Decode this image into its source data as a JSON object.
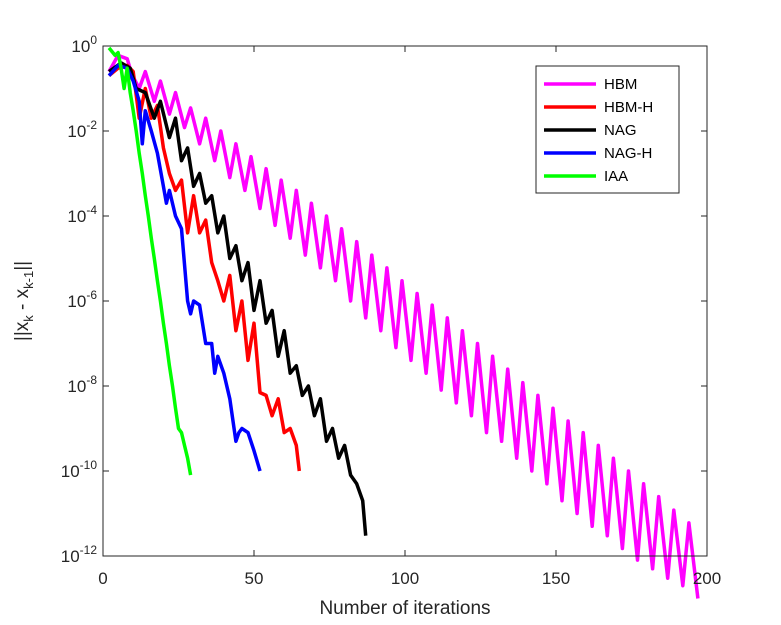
{
  "chart_data": {
    "type": "line",
    "title": "",
    "xlabel": "Number of iterations",
    "ylabel": {
      "prefix": "||x",
      "sub1": "k",
      "mid": " - x",
      "sub2": "k-1",
      "suffix": "||"
    },
    "yscale": "log",
    "xlim": [
      0,
      200
    ],
    "ylim": [
      1e-12,
      1
    ],
    "xticks": [
      0,
      50,
      100,
      150,
      200
    ],
    "xtick_labels": [
      "0",
      "50",
      "100",
      "150",
      "200"
    ],
    "yticks": [
      {
        "value": 1e-12,
        "base": "10",
        "exp": "-12"
      },
      {
        "value": 1e-10,
        "base": "10",
        "exp": "-10"
      },
      {
        "value": 1e-08,
        "base": "10",
        "exp": "-8"
      },
      {
        "value": 1e-06,
        "base": "10",
        "exp": "-6"
      },
      {
        "value": 0.0001,
        "base": "10",
        "exp": "-4"
      },
      {
        "value": 0.01,
        "base": "10",
        "exp": "-2"
      },
      {
        "value": 1,
        "base": "10",
        "exp": "0"
      }
    ],
    "grid": false,
    "legend_position": "top-right",
    "series": [
      {
        "name": "HBM",
        "color": "#ff00ff",
        "x": [
          2,
          5,
          8,
          9.5,
          12,
          14,
          17,
          19,
          22,
          24,
          27,
          29,
          32,
          34,
          37,
          39,
          42,
          44,
          47,
          49,
          52,
          54,
          57,
          59,
          62,
          64,
          67,
          69,
          72,
          74,
          77,
          79,
          82,
          84,
          87,
          89,
          92,
          94,
          97,
          99,
          102,
          104,
          107,
          109,
          112,
          114,
          117,
          119,
          122,
          124,
          127,
          129,
          132,
          134,
          137,
          139,
          142,
          144,
          147,
          149,
          152,
          154,
          157,
          159,
          162,
          164,
          167,
          169,
          172,
          174,
          177,
          179,
          182,
          184,
          187,
          189,
          192,
          194,
          197
        ],
        "y": [
          0.25,
          0.6,
          0.5,
          0.22,
          0.1,
          0.25,
          0.05,
          0.15,
          0.025,
          0.08,
          0.012,
          0.035,
          0.005,
          0.02,
          0.002,
          0.01,
          0.0008,
          0.005,
          0.0004,
          0.0025,
          0.00015,
          0.0013,
          6e-05,
          0.0007,
          3e-05,
          0.0004,
          1.2e-05,
          0.0002,
          6e-06,
          0.0001,
          3e-06,
          5e-05,
          1e-06,
          2.5e-05,
          4e-07,
          1.2e-05,
          2e-07,
          6e-06,
          8e-08,
          3e-06,
          4e-08,
          1.5e-06,
          2e-08,
          8e-07,
          8e-09,
          4e-07,
          4e-09,
          2e-07,
          2e-09,
          1e-07,
          8e-10,
          5e-08,
          5e-10,
          2.5e-08,
          2e-10,
          1.2e-08,
          1e-10,
          6e-09,
          5e-11,
          3e-09,
          2e-11,
          1.5e-09,
          1e-11,
          8e-10,
          5e-12,
          4e-10,
          3e-12,
          2e-10,
          1.5e-12,
          1e-10,
          8e-13,
          5e-11,
          5e-13,
          2.5e-11,
          3e-13,
          1.2e-11,
          2e-13,
          6e-12,
          1e-13
        ]
      },
      {
        "name": "HBM-H",
        "color": "#ff0000",
        "x": [
          2,
          5,
          8,
          10,
          12,
          14,
          16,
          18,
          20,
          22,
          24,
          26,
          28,
          30,
          32,
          34,
          36,
          38,
          40,
          42,
          44,
          46,
          48,
          50,
          52,
          54,
          56,
          58,
          60,
          62,
          64,
          65
        ],
        "y": [
          0.2,
          0.3,
          0.35,
          0.25,
          0.02,
          0.1,
          0.02,
          0.04,
          0.004,
          0.001,
          0.0004,
          0.0007,
          4e-05,
          0.0003,
          4e-05,
          8e-05,
          8e-06,
          3e-06,
          1e-06,
          4e-06,
          2e-07,
          1e-06,
          4e-08,
          3e-07,
          7e-09,
          6e-09,
          2e-09,
          5e-09,
          8e-10,
          1e-09,
          4e-10,
          1e-10
        ]
      },
      {
        "name": "NAG",
        "color": "#000000",
        "x": [
          2,
          6,
          9,
          11,
          14,
          17,
          19,
          22,
          24,
          26,
          28,
          30,
          32,
          34,
          36,
          38,
          40,
          42,
          44,
          46,
          48,
          50,
          52,
          54,
          56,
          58,
          60,
          62,
          64,
          66,
          68,
          70,
          72,
          74,
          76,
          78,
          80,
          82,
          84,
          86,
          87
        ],
        "y": [
          0.25,
          0.4,
          0.3,
          0.1,
          0.08,
          0.02,
          0.05,
          0.007,
          0.02,
          0.002,
          0.004,
          0.0005,
          0.001,
          0.0002,
          0.0003,
          4e-05,
          0.0001,
          1e-05,
          2e-05,
          3e-06,
          8e-06,
          6e-07,
          3e-06,
          3e-07,
          6e-07,
          5e-08,
          2e-07,
          2e-08,
          3e-08,
          6e-09,
          1e-08,
          2e-09,
          5e-09,
          5e-10,
          1e-09,
          2e-10,
          4e-10,
          8e-11,
          5e-11,
          2e-11,
          3e-12
        ]
      },
      {
        "name": "NAG-H",
        "color": "#0000ff",
        "x": [
          2,
          5,
          8,
          10,
          12,
          13,
          14,
          16,
          18,
          20,
          21,
          22,
          24,
          26,
          28,
          29,
          30,
          32,
          34,
          36,
          37,
          38,
          40,
          42,
          44,
          45,
          46,
          48,
          50,
          52
        ],
        "y": [
          0.2,
          0.35,
          0.3,
          0.15,
          0.05,
          0.005,
          0.03,
          0.01,
          0.003,
          0.0005,
          0.0002,
          0.0004,
          0.0001,
          5e-05,
          1e-06,
          5e-07,
          1e-06,
          8e-07,
          1e-07,
          1e-07,
          2e-08,
          5e-08,
          2e-08,
          5e-09,
          5e-10,
          8e-10,
          1e-09,
          8e-10,
          3e-10,
          1e-10
        ]
      },
      {
        "name": "IAA",
        "color": "#00ff00",
        "x": [
          2,
          4,
          5,
          6,
          7,
          8,
          9,
          10,
          11,
          12,
          13,
          14,
          15,
          16,
          17,
          18,
          19,
          20,
          21,
          22,
          23,
          24,
          25,
          26,
          27,
          28,
          29
        ],
        "y": [
          0.9,
          0.6,
          0.7,
          0.3,
          0.1,
          0.3,
          0.08,
          0.03,
          0.01,
          0.003,
          0.001,
          0.0003,
          0.0001,
          3e-05,
          1e-05,
          3e-06,
          1e-06,
          3e-07,
          1e-07,
          3e-08,
          1e-08,
          3e-09,
          1e-09,
          8e-10,
          4e-10,
          2e-10,
          8e-11
        ]
      }
    ]
  }
}
